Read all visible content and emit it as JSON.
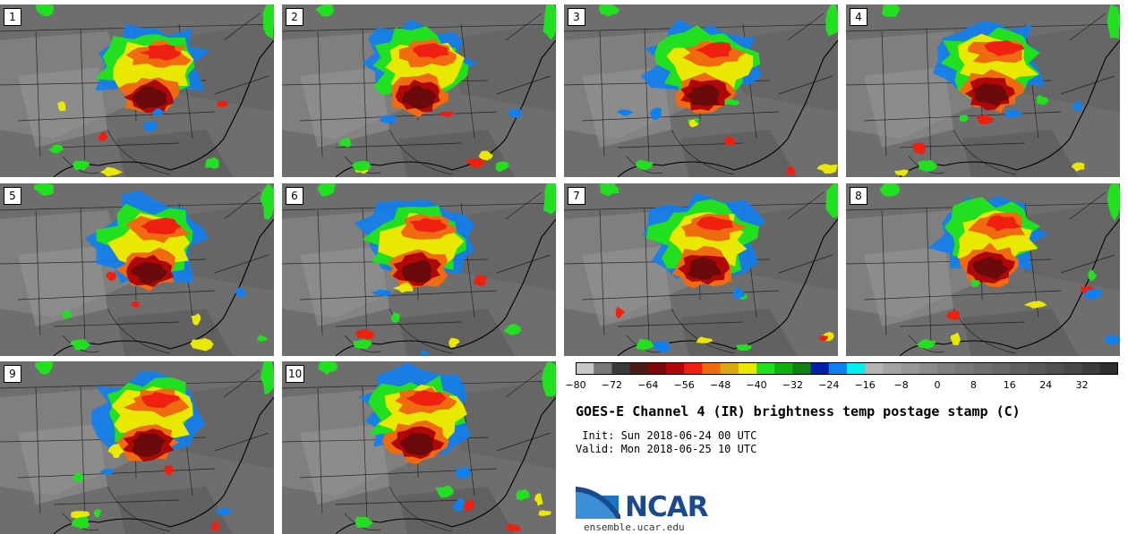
{
  "panels": [
    "1",
    "2",
    "3",
    "4",
    "5",
    "6",
    "7",
    "8",
    "9",
    "10"
  ],
  "colorbar": {
    "colors": [
      "#c8c8c8",
      "#7a7a7a",
      "#3a3a3a",
      "#4d1a1a",
      "#7a0a0a",
      "#b00808",
      "#f02010",
      "#f06a10",
      "#d8a810",
      "#e8e800",
      "#20e020",
      "#10b010",
      "#108010",
      "#0020a8",
      "#1080f0",
      "#00f0f0",
      "#b4b4b4",
      "#a4a4a4",
      "#989898",
      "#8c8c8c",
      "#808080",
      "#787878",
      "#707070",
      "#686868",
      "#606060",
      "#585858",
      "#505050",
      "#484848",
      "#3c3c3c",
      "#2c2c2c"
    ],
    "tick_values": [
      -80,
      -72,
      -64,
      -56,
      -48,
      -40,
      -32,
      -24,
      -16,
      -8,
      0,
      8,
      16,
      24,
      32
    ],
    "tick_labels": [
      "−80",
      "−72",
      "−64",
      "−56",
      "−48",
      "−40",
      "−32",
      "−24",
      "−16",
      "−8",
      "0",
      "8",
      "16",
      "24",
      "32"
    ],
    "range": [
      -80,
      40
    ]
  },
  "title": "GOES-E Channel 4 (IR) brightness temp postage stamp (C)",
  "init": " Init: Sun 2018-06-24 00 UTC",
  "valid": "Valid: Mon 2018-06-25 10 UTC",
  "logo": {
    "brand": "NCAR",
    "brand_color": "#1b4a8c"
  },
  "site": "ensemble.ucar.edu"
}
